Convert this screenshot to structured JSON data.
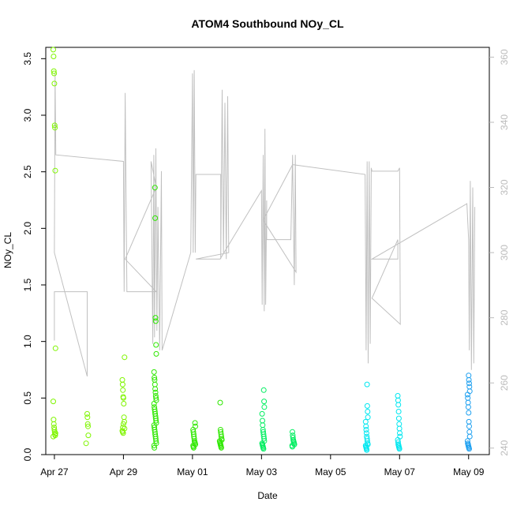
{
  "chart_data": {
    "type": "scatter",
    "title": "ATOM4 Southbound NOy_CL",
    "xlabel": "Date",
    "ylabel": "NOy_CL",
    "ylim": [
      0,
      3.6
    ],
    "xlim_days": [
      26.75,
      39.6
    ],
    "y_ticks": [
      "0.0",
      "0.5",
      "1.0",
      "1.5",
      "2.0",
      "2.5",
      "3.0",
      "3.5"
    ],
    "x_ticks": [
      {
        "day": 27,
        "label": "Apr 27"
      },
      {
        "day": 29,
        "label": "Apr 29"
      },
      {
        "day": 31,
        "label": "May 01"
      },
      {
        "day": 33,
        "label": "May 03"
      },
      {
        "day": 35,
        "label": "May 05"
      },
      {
        "day": 37,
        "label": "May 07"
      },
      {
        "day": 39,
        "label": "May 09"
      }
    ],
    "secondary_axis": {
      "ticks": [
        "240",
        "260",
        "280",
        "300",
        "320",
        "340",
        "360"
      ],
      "ylim": [
        238,
        363
      ],
      "color": "#bbbbbb"
    },
    "colors": {
      "green_early": "#7ff500",
      "green_mid": "#2ee800",
      "green_late": "#00ee60",
      "cyan": "#00e7f0",
      "blue": "#1ea0f0",
      "line": "#c0c0c0"
    },
    "series": [
      {
        "color_key": "green_early",
        "x": 27.0,
        "y": [
          3.58,
          3.52,
          3.39,
          3.37,
          3.28,
          2.91,
          2.89,
          2.51,
          0.94,
          0.47,
          0.31,
          0.27,
          0.24,
          0.22,
          0.2,
          0.18,
          0.17,
          0.19,
          0.16
        ]
      },
      {
        "color_key": "green_early",
        "x": 27.95,
        "y": [
          0.36,
          0.33,
          0.27,
          0.25,
          0.17,
          0.1
        ]
      },
      {
        "color_key": "green_early",
        "x": 29.0,
        "y": [
          0.86,
          0.66,
          0.62,
          0.57,
          0.51,
          0.5,
          0.45,
          0.33,
          0.29,
          0.23,
          0.21,
          0.2,
          0.24,
          0.19,
          0.27
        ]
      },
      {
        "color_key": "green_mid",
        "x": 29.92,
        "y": [
          2.36,
          2.09,
          1.21,
          1.18,
          0.97,
          0.89,
          0.73,
          0.68,
          0.66,
          0.62,
          0.58,
          0.55,
          0.52,
          0.5,
          0.48,
          0.45,
          0.42,
          0.4,
          0.38,
          0.36,
          0.34,
          0.32,
          0.3,
          0.28,
          0.26,
          0.24,
          0.22,
          0.2,
          0.18,
          0.16,
          0.14,
          0.12,
          0.1,
          0.08,
          0.06
        ]
      },
      {
        "color_key": "green_mid",
        "x": 31.05,
        "y": [
          0.28,
          0.25,
          0.22,
          0.2,
          0.18,
          0.16,
          0.14,
          0.12,
          0.11,
          0.1,
          0.09,
          0.08,
          0.07,
          0.06
        ]
      },
      {
        "color_key": "green_mid",
        "x": 31.82,
        "y": [
          0.46,
          0.22,
          0.2,
          0.18,
          0.16,
          0.14,
          0.13,
          0.12,
          0.11,
          0.1,
          0.09,
          0.08,
          0.07,
          0.06
        ]
      },
      {
        "color_key": "green_late",
        "x": 33.05,
        "y": [
          0.57,
          0.47,
          0.42,
          0.36,
          0.3,
          0.26,
          0.22,
          0.2,
          0.18,
          0.16,
          0.14,
          0.12,
          0.1,
          0.09,
          0.08,
          0.07,
          0.06,
          0.05
        ]
      },
      {
        "color_key": "green_late",
        "x": 33.92,
        "y": [
          0.2,
          0.17,
          0.15,
          0.13,
          0.12,
          0.11,
          0.1,
          0.09,
          0.08,
          0.07
        ]
      },
      {
        "color_key": "cyan",
        "x": 36.05,
        "y": [
          0.62,
          0.43,
          0.38,
          0.33,
          0.29,
          0.25,
          0.22,
          0.19,
          0.16,
          0.14,
          0.12,
          0.1,
          0.09,
          0.08,
          0.07,
          0.06,
          0.05,
          0.04
        ]
      },
      {
        "color_key": "cyan",
        "x": 36.98,
        "y": [
          0.52,
          0.48,
          0.44,
          0.38,
          0.32,
          0.27,
          0.23,
          0.19,
          0.16,
          0.13,
          0.11,
          0.09,
          0.08,
          0.07,
          0.06,
          0.05
        ]
      },
      {
        "color_key": "blue",
        "x": 39.0,
        "y": [
          0.7,
          0.66,
          0.63,
          0.6,
          0.56,
          0.53,
          0.5,
          0.46,
          0.42,
          0.37,
          0.29,
          0.25,
          0.2,
          0.16,
          0.12,
          0.1,
          0.09,
          0.08,
          0.07,
          0.06,
          0.05
        ]
      }
    ],
    "altitude_trace": [
      [
        27.0,
        273
      ],
      [
        27.0,
        288
      ],
      [
        27.05,
        288
      ],
      [
        27.95,
        288
      ],
      [
        27.95,
        262
      ],
      [
        27.0,
        300
      ],
      [
        27.02,
        355
      ],
      [
        27.04,
        330
      ],
      [
        29.0,
        328
      ],
      [
        29.02,
        288
      ],
      [
        29.05,
        349
      ],
      [
        29.1,
        288
      ],
      [
        29.95,
        288
      ],
      [
        29.05,
        298
      ],
      [
        29.95,
        320
      ],
      [
        29.8,
        328
      ],
      [
        29.85,
        272
      ],
      [
        29.88,
        330
      ],
      [
        29.9,
        274
      ],
      [
        29.94,
        332
      ],
      [
        29.97,
        276
      ],
      [
        30.0,
        314
      ],
      [
        30.05,
        270
      ],
      [
        30.1,
        325
      ],
      [
        30.12,
        270
      ],
      [
        30.95,
        300
      ],
      [
        31.0,
        355
      ],
      [
        31.02,
        300
      ],
      [
        31.05,
        356
      ],
      [
        31.08,
        300
      ],
      [
        31.1,
        324
      ],
      [
        31.82,
        324
      ],
      [
        31.82,
        298
      ],
      [
        31.86,
        350
      ],
      [
        31.9,
        300
      ],
      [
        31.94,
        346
      ],
      [
        31.98,
        298
      ],
      [
        32.02,
        348
      ],
      [
        32.05,
        300
      ],
      [
        31.1,
        298
      ],
      [
        31.8,
        298
      ],
      [
        33.0,
        319
      ],
      [
        33.02,
        284
      ],
      [
        33.05,
        330
      ],
      [
        33.08,
        282
      ],
      [
        33.1,
        338
      ],
      [
        33.12,
        284
      ],
      [
        33.15,
        316
      ],
      [
        33.15,
        304
      ],
      [
        33.85,
        304
      ],
      [
        33.9,
        330
      ],
      [
        33.95,
        290
      ],
      [
        33.98,
        330
      ],
      [
        34.0,
        294
      ],
      [
        33.05,
        310
      ],
      [
        33.9,
        327
      ],
      [
        36.0,
        324
      ],
      [
        36.03,
        270
      ],
      [
        36.06,
        328
      ],
      [
        36.09,
        266
      ],
      [
        36.12,
        328
      ],
      [
        36.15,
        272
      ],
      [
        36.18,
        326
      ],
      [
        36.2,
        325
      ],
      [
        36.95,
        325
      ],
      [
        37.0,
        326
      ],
      [
        37.02,
        278
      ],
      [
        36.2,
        286
      ],
      [
        36.95,
        304
      ],
      [
        36.95,
        298
      ],
      [
        36.2,
        298
      ],
      [
        38.95,
        315
      ],
      [
        39.0,
        304
      ],
      [
        39.02,
        270
      ],
      [
        39.05,
        322
      ],
      [
        39.08,
        264
      ],
      [
        39.12,
        320
      ],
      [
        39.15,
        266
      ],
      [
        39.18,
        314
      ]
    ]
  }
}
